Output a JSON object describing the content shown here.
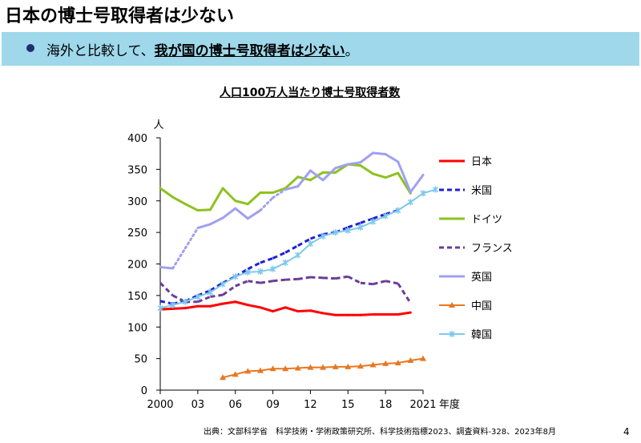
{
  "page": {
    "title": "日本の博士号取得者は少ない",
    "banner_prefix": "海外と比較して、",
    "banner_emphasis": "我が国の博士号取得者は少ない",
    "banner_suffix": "。",
    "source": "出典：文部科学省　科学技術・学術政策研究所、科学技術指標2023、調査資料-328、2023年8月",
    "page_number": "4",
    "colors": {
      "banner": "#9ed8ea",
      "bullet": "#1f2f6e"
    }
  },
  "chart_data": {
    "type": "line",
    "title": "人口100万人当たり博士号取得者数",
    "ylabel": "人",
    "xlabel": "年度",
    "ylim": [
      0,
      400
    ],
    "xlim": [
      2000,
      2021
    ],
    "yticks": [
      0,
      50,
      100,
      150,
      200,
      250,
      300,
      350,
      400
    ],
    "xticks": [
      {
        "value": 2000,
        "label": "2000"
      },
      {
        "value": 2003,
        "label": "03"
      },
      {
        "value": 2006,
        "label": "06"
      },
      {
        "value": 2009,
        "label": "09"
      },
      {
        "value": 2012,
        "label": "12"
      },
      {
        "value": 2015,
        "label": "15"
      },
      {
        "value": 2018,
        "label": "18"
      },
      {
        "value": 2021,
        "label": "2021"
      }
    ],
    "series": [
      {
        "name": "日本",
        "color": "#ff0000",
        "style": "solid",
        "points": [
          [
            2000,
            128
          ],
          [
            2001,
            129
          ],
          [
            2002,
            130
          ],
          [
            2003,
            133
          ],
          [
            2004,
            133
          ],
          [
            2005,
            137
          ],
          [
            2006,
            140
          ],
          [
            2007,
            135
          ],
          [
            2008,
            131
          ],
          [
            2009,
            125
          ],
          [
            2010,
            131
          ],
          [
            2011,
            125
          ],
          [
            2012,
            126
          ],
          [
            2013,
            122
          ],
          [
            2014,
            119
          ],
          [
            2015,
            119
          ],
          [
            2016,
            119
          ],
          [
            2017,
            120
          ],
          [
            2018,
            120
          ],
          [
            2019,
            120
          ],
          [
            2020,
            123
          ]
        ]
      },
      {
        "name": "米国",
        "color": "#1f1fd6",
        "style": "dashed",
        "points": [
          [
            2000,
            141
          ],
          [
            2001,
            137
          ],
          [
            2002,
            141
          ],
          [
            2003,
            150
          ],
          [
            2004,
            158
          ],
          [
            2005,
            170
          ],
          [
            2006,
            180
          ],
          [
            2007,
            192
          ],
          [
            2008,
            202
          ],
          [
            2009,
            209
          ],
          [
            2010,
            218
          ],
          [
            2011,
            229
          ],
          [
            2012,
            240
          ],
          [
            2013,
            247
          ],
          [
            2014,
            250
          ],
          [
            2015,
            258
          ],
          [
            2016,
            265
          ],
          [
            2017,
            272
          ],
          [
            2018,
            279
          ],
          [
            2019,
            285
          ]
        ]
      },
      {
        "name": "ドイツ",
        "color": "#8dc21f",
        "style": "solid",
        "points": [
          [
            2000,
            320
          ],
          [
            2001,
            306
          ],
          [
            2002,
            295
          ],
          [
            2003,
            285
          ],
          [
            2004,
            286
          ],
          [
            2005,
            320
          ],
          [
            2006,
            300
          ],
          [
            2007,
            295
          ],
          [
            2008,
            313
          ],
          [
            2009,
            313
          ],
          [
            2010,
            320
          ],
          [
            2011,
            338
          ],
          [
            2012,
            333
          ],
          [
            2013,
            345
          ],
          [
            2014,
            345
          ],
          [
            2015,
            358
          ],
          [
            2016,
            356
          ],
          [
            2017,
            343
          ],
          [
            2018,
            337
          ],
          [
            2019,
            344
          ],
          [
            2020,
            312
          ]
        ]
      },
      {
        "name": "フランス",
        "color": "#6a3d9a",
        "style": "dashed",
        "points": [
          [
            2000,
            170
          ],
          [
            2001,
            150
          ],
          [
            2002,
            140
          ],
          [
            2003,
            140
          ],
          [
            2004,
            148
          ],
          [
            2005,
            151
          ],
          [
            2006,
            165
          ],
          [
            2007,
            173
          ],
          [
            2008,
            170
          ],
          [
            2009,
            173
          ],
          [
            2010,
            175
          ],
          [
            2011,
            176
          ],
          [
            2012,
            179
          ],
          [
            2013,
            178
          ],
          [
            2014,
            177
          ],
          [
            2015,
            180
          ],
          [
            2016,
            170
          ],
          [
            2017,
            168
          ],
          [
            2018,
            173
          ],
          [
            2019,
            169
          ],
          [
            2020,
            138
          ]
        ]
      },
      {
        "name": "英国",
        "color": "#a0a0f0",
        "style": "solid",
        "points": [
          [
            2000,
            195
          ],
          [
            2001,
            193
          ],
          [
            2002,
            225
          ],
          [
            2003,
            257
          ],
          [
            2004,
            263
          ],
          [
            2005,
            273
          ],
          [
            2006,
            288
          ],
          [
            2007,
            272
          ],
          [
            2008,
            285
          ],
          [
            2009,
            305
          ],
          [
            2010,
            318
          ],
          [
            2011,
            323
          ],
          [
            2012,
            348
          ],
          [
            2013,
            333
          ],
          [
            2014,
            352
          ],
          [
            2015,
            358
          ],
          [
            2016,
            361
          ],
          [
            2017,
            376
          ],
          [
            2018,
            374
          ],
          [
            2019,
            362
          ],
          [
            2020,
            314
          ],
          [
            2021,
            341
          ]
        ],
        "dotted_segments": [
          [
            2001,
            2003
          ],
          [
            2008,
            2010
          ]
        ]
      },
      {
        "name": "中国",
        "color": "#e87722",
        "style": "triangle-markers",
        "points": [
          [
            2005,
            20
          ],
          [
            2006,
            25
          ],
          [
            2007,
            30
          ],
          [
            2008,
            31
          ],
          [
            2009,
            34
          ],
          [
            2010,
            34
          ],
          [
            2011,
            35
          ],
          [
            2012,
            36
          ],
          [
            2013,
            36
          ],
          [
            2014,
            37
          ],
          [
            2015,
            37
          ],
          [
            2016,
            38
          ],
          [
            2017,
            40
          ],
          [
            2018,
            42
          ],
          [
            2019,
            43
          ],
          [
            2020,
            47
          ],
          [
            2021,
            50
          ]
        ]
      },
      {
        "name": "韓国",
        "color": "#7ec8ec",
        "style": "x-markers",
        "points": [
          [
            2000,
            130
          ],
          [
            2001,
            135
          ],
          [
            2002,
            140
          ],
          [
            2003,
            148
          ],
          [
            2004,
            155
          ],
          [
            2005,
            168
          ],
          [
            2006,
            180
          ],
          [
            2007,
            187
          ],
          [
            2008,
            188
          ],
          [
            2009,
            192
          ],
          [
            2010,
            202
          ],
          [
            2011,
            214
          ],
          [
            2012,
            232
          ],
          [
            2013,
            244
          ],
          [
            2014,
            250
          ],
          [
            2015,
            253
          ],
          [
            2016,
            258
          ],
          [
            2017,
            267
          ],
          [
            2018,
            276
          ],
          [
            2019,
            285
          ],
          [
            2020,
            298
          ],
          [
            2021,
            312
          ],
          [
            2022,
            318
          ]
        ]
      }
    ]
  }
}
